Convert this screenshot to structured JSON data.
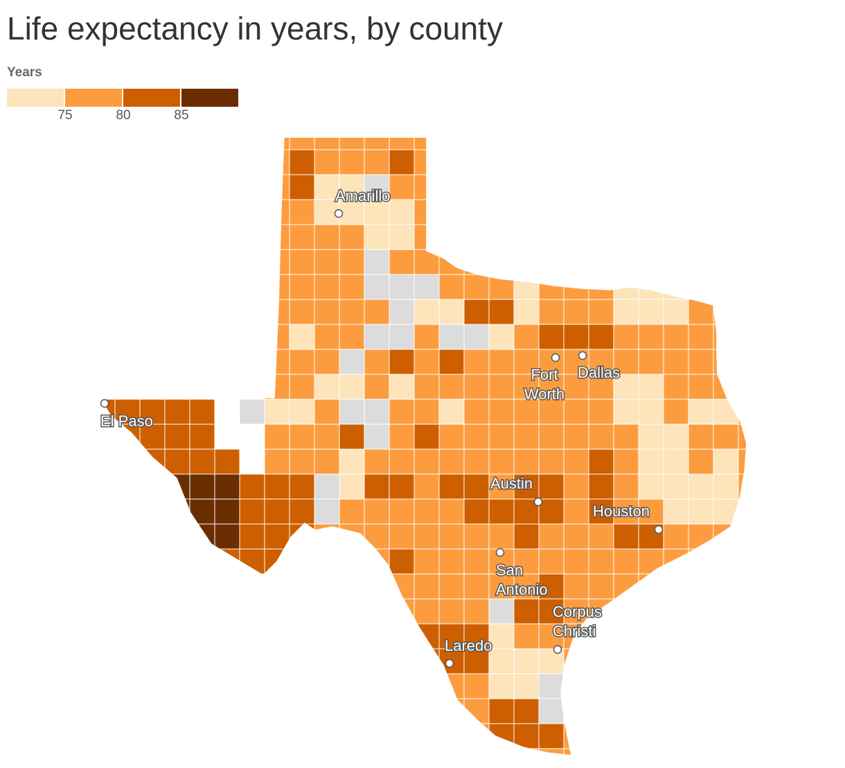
{
  "title": "Life expectancy in years, by county",
  "legend": {
    "title": "Years",
    "bins": [
      {
        "color": "#fde4ba"
      },
      {
        "color": "#fd9c3f"
      },
      {
        "color": "#cd5f00"
      },
      {
        "color": "#6b2e00"
      }
    ],
    "ticks": [
      "75",
      "80",
      "85"
    ],
    "no_data_color": "#dcdcdc"
  },
  "cities": [
    {
      "name": "Amarillo",
      "lines": [
        "Amarillo"
      ]
    },
    {
      "name": "El Paso",
      "lines": [
        "El Paso"
      ]
    },
    {
      "name": "Fort Worth",
      "lines": [
        "Fort",
        "Worth"
      ]
    },
    {
      "name": "Dallas",
      "lines": [
        "Dallas"
      ]
    },
    {
      "name": "Austin",
      "lines": [
        "Austin"
      ]
    },
    {
      "name": "Houston",
      "lines": [
        "Houston"
      ]
    },
    {
      "name": "San Antonio",
      "lines": [
        "San",
        "Antonio"
      ]
    },
    {
      "name": "Corpus Christi",
      "lines": [
        "Corpus",
        "Christi"
      ]
    },
    {
      "name": "Laredo",
      "lines": [
        "Laredo"
      ]
    }
  ]
}
